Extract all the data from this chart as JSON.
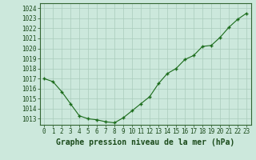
{
  "x": [
    0,
    1,
    2,
    3,
    4,
    5,
    6,
    7,
    8,
    9,
    10,
    11,
    12,
    13,
    14,
    15,
    16,
    17,
    18,
    19,
    20,
    21,
    22,
    23
  ],
  "y": [
    1017.0,
    1016.7,
    1015.7,
    1014.5,
    1013.3,
    1013.0,
    1012.9,
    1012.7,
    1012.6,
    1013.1,
    1013.8,
    1014.5,
    1015.2,
    1016.5,
    1017.5,
    1018.0,
    1018.9,
    1019.3,
    1020.2,
    1020.3,
    1021.1,
    1022.1,
    1022.9,
    1023.5
  ],
  "line_color": "#1a6b1a",
  "marker_color": "#1a6b1a",
  "bg_color": "#cce8dc",
  "grid_color": "#aaccbb",
  "title": "Graphe pression niveau de la mer (hPa)",
  "ylim_min": 1012.4,
  "ylim_max": 1024.5,
  "xlim_min": -0.5,
  "xlim_max": 23.5,
  "yticks": [
    1013,
    1014,
    1015,
    1016,
    1017,
    1018,
    1019,
    1020,
    1021,
    1022,
    1023,
    1024
  ],
  "xticks": [
    0,
    1,
    2,
    3,
    4,
    5,
    6,
    7,
    8,
    9,
    10,
    11,
    12,
    13,
    14,
    15,
    16,
    17,
    18,
    19,
    20,
    21,
    22,
    23
  ],
  "xlabel_fontsize": 7.0,
  "tick_fontsize": 5.5
}
